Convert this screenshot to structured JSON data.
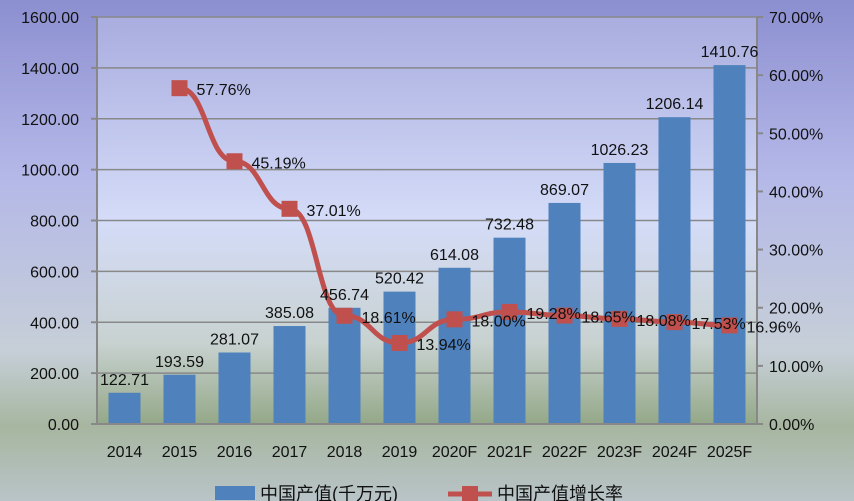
{
  "chart_data": {
    "type": "bar+line",
    "categories": [
      "2014",
      "2015",
      "2016",
      "2017",
      "2018",
      "2019",
      "2020F",
      "2021F",
      "2022F",
      "2023F",
      "2024F",
      "2025F"
    ],
    "series": [
      {
        "name": "中国产值(千万元)",
        "type": "bar",
        "axis": "left",
        "color": "#4F81BD",
        "values": [
          122.71,
          193.59,
          281.07,
          385.08,
          456.74,
          520.42,
          614.08,
          732.48,
          869.07,
          1026.23,
          1206.14,
          1410.76
        ],
        "labels": [
          "122.71",
          "193.59",
          "281.07",
          "385.08",
          "456.74",
          "520.42",
          "614.08",
          "732.48",
          "869.07",
          "1026.23",
          "1206.14",
          "1410.76"
        ]
      },
      {
        "name": "中国产值增长率",
        "type": "line",
        "axis": "right",
        "color": "#C0504D",
        "values": [
          null,
          57.76,
          45.19,
          37.01,
          18.61,
          13.94,
          18.0,
          19.28,
          18.65,
          18.08,
          17.53,
          16.96
        ],
        "labels": [
          "",
          "57.76%",
          "45.19%",
          "37.01%",
          "18.61%",
          "13.94%",
          "18.00%",
          "19.28%",
          "18.65%",
          "18.08%",
          "17.53%",
          "16.96%"
        ]
      }
    ],
    "y_left": {
      "range": [
        0,
        1600
      ],
      "ticks": [
        "0.00",
        "200.00",
        "400.00",
        "600.00",
        "800.00",
        "1000.00",
        "1200.00",
        "1400.00",
        "1600.00"
      ]
    },
    "y_right": {
      "range": [
        0,
        70
      ],
      "ticks": [
        "0.00%",
        "10.00%",
        "20.00%",
        "30.00%",
        "40.00%",
        "50.00%",
        "60.00%",
        "70.00%"
      ]
    },
    "grid": true,
    "legend": "bottom"
  }
}
